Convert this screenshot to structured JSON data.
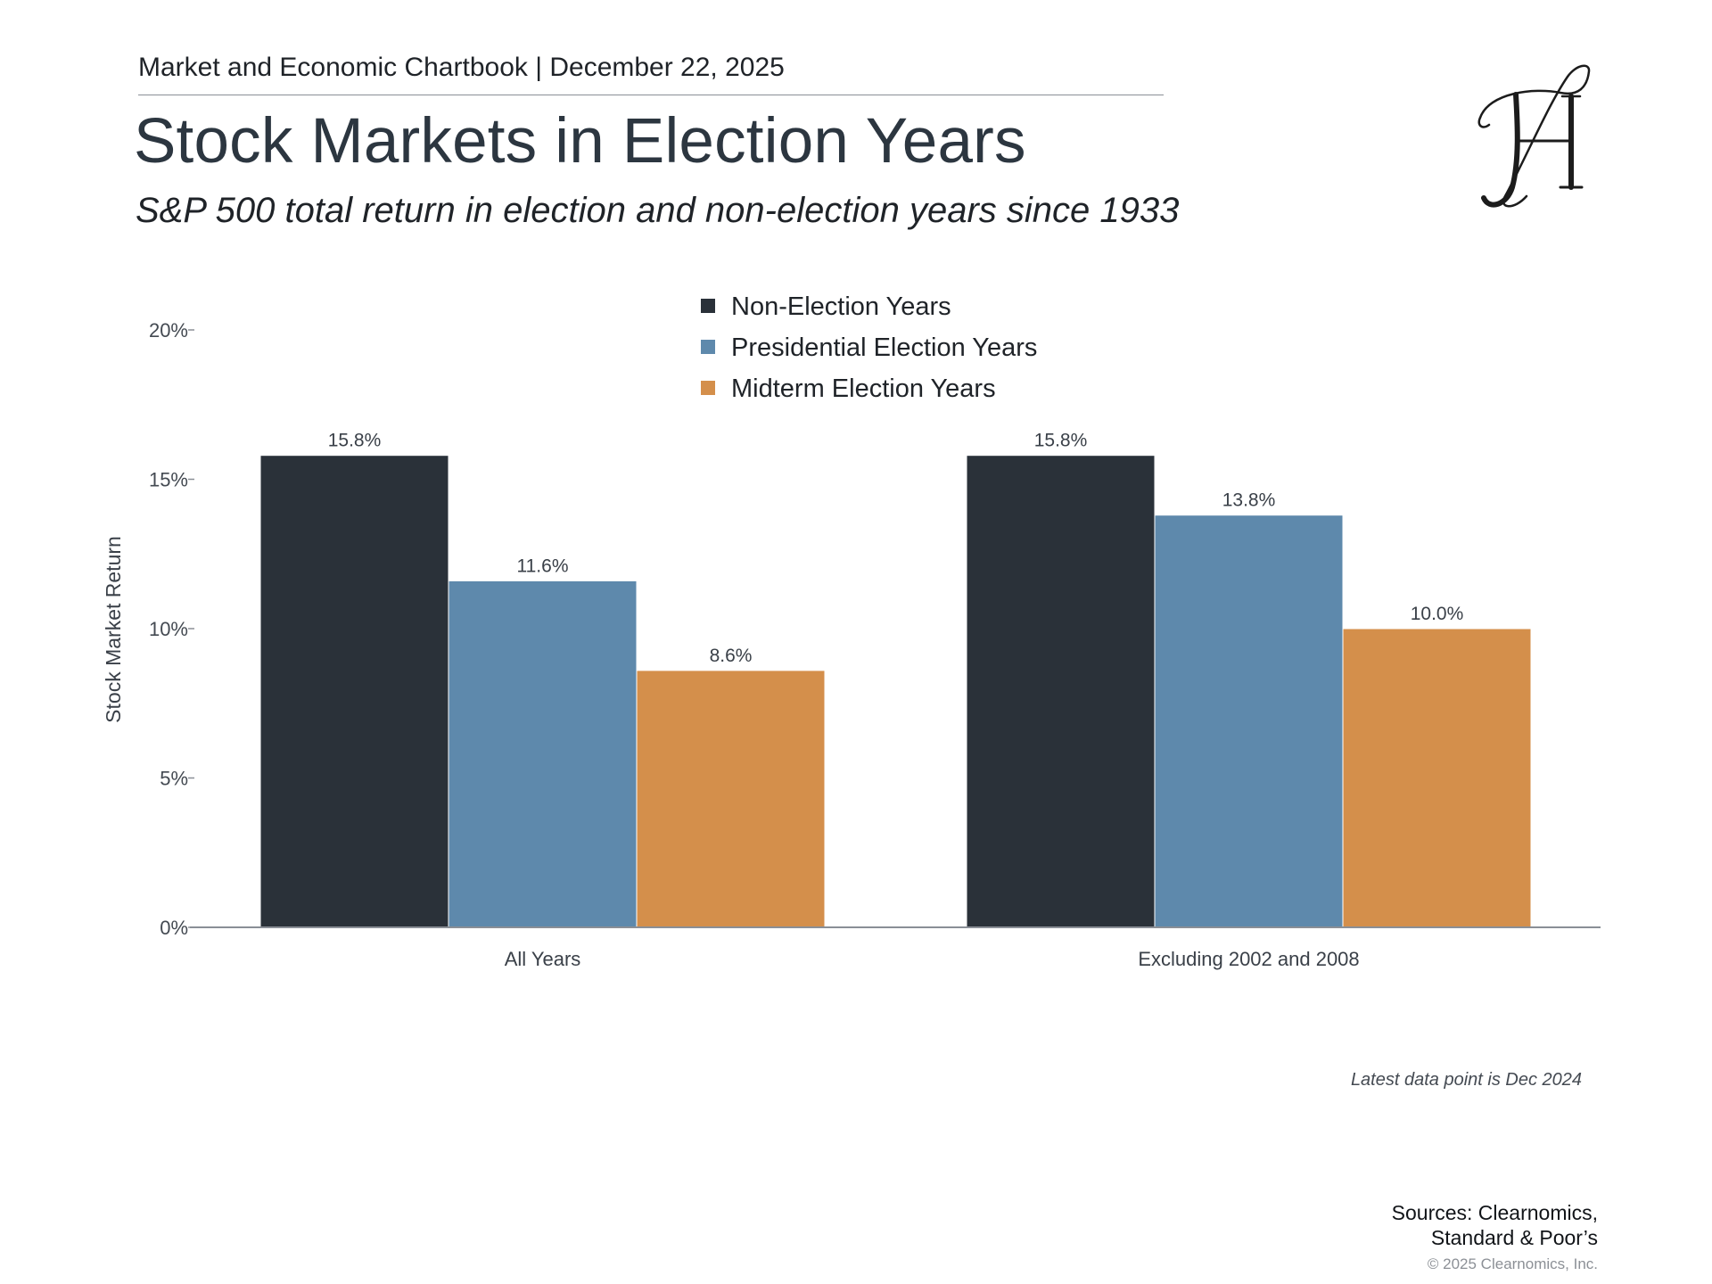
{
  "header": {
    "chartbook_line": "Market and Economic Chartbook | December 22, 2025",
    "title": "Stock Markets in Election Years",
    "subtitle": "S&P 500 total return in election and non-election years since 1933"
  },
  "chart_data": {
    "type": "bar",
    "title": "Stock Markets in Election Years",
    "subtitle": "S&P 500 total return in election and non-election years since 1933",
    "categories": [
      "All Years",
      "Excluding 2002 and 2008"
    ],
    "series": [
      {
        "name": "Non-Election Years",
        "color": "#2a3139",
        "values": [
          15.8,
          15.8
        ],
        "labels": [
          "15.8%",
          "15.8%"
        ]
      },
      {
        "name": "Presidential Election Years",
        "color": "#5e89ac",
        "values": [
          11.6,
          13.8
        ],
        "labels": [
          "11.6%",
          "13.8%"
        ]
      },
      {
        "name": "Midterm Election Years",
        "color": "#d48f4b",
        "values": [
          8.6,
          10.0
        ],
        "labels": [
          "8.6%",
          "10.0%"
        ]
      }
    ],
    "ylabel": "Stock Market Return",
    "xlabel": "",
    "ylim": [
      0,
      20
    ],
    "yticks": [
      0,
      5,
      10,
      15,
      20
    ],
    "ytick_labels": [
      "0%",
      "5%",
      "10%",
      "15%",
      "20%"
    ],
    "legend_position": "top-center",
    "grid": false
  },
  "footnote": "Latest data point is Dec 2024",
  "sources": {
    "line1": "Sources: Clearnomics,",
    "line2": "Standard & Poor’s"
  },
  "copyright": "© 2025 Clearnomics, Inc."
}
